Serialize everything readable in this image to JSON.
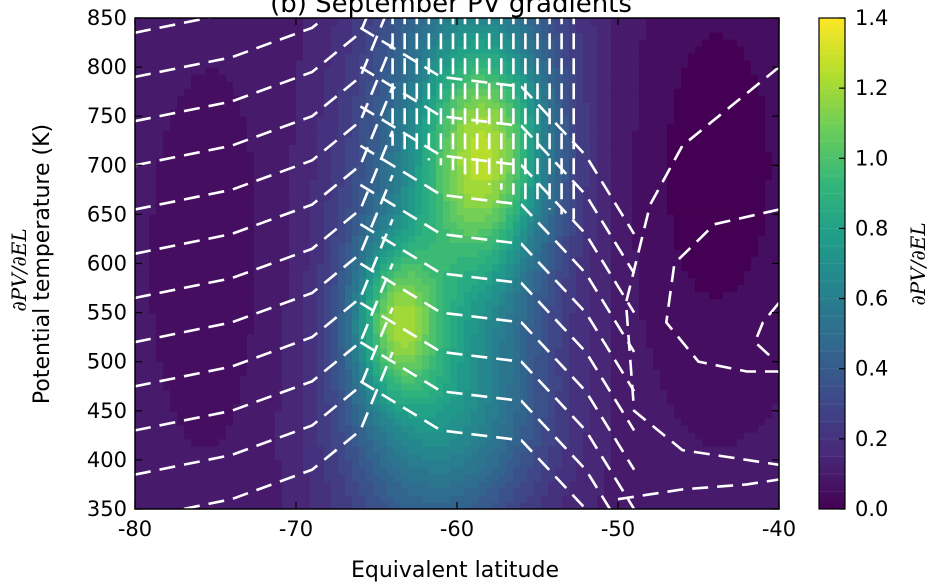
{
  "chart_data": {
    "type": "heatmap",
    "title": "(b) September PV gradients",
    "xlabel": "Equivalent latitude",
    "ylabel": "Potential temperature (K)",
    "ylabel_math": "∂PV/∂EL",
    "xlim": [
      -80,
      -40
    ],
    "ylim": [
      350,
      850
    ],
    "x_ticks": [
      "-80",
      "-70",
      "-60",
      "-50",
      "-40"
    ],
    "y_ticks": [
      "350",
      "400",
      "450",
      "500",
      "550",
      "600",
      "650",
      "700",
      "750",
      "800",
      "850"
    ],
    "colorbar": {
      "label": "∂PV/∂EL",
      "range": [
        0.0,
        1.4
      ],
      "ticks": [
        "0.0",
        "0.2",
        "0.4",
        "0.6",
        "0.8",
        "1.0",
        "1.2",
        "1.4"
      ],
      "colormap": "viridis"
    },
    "field_features": [
      {
        "description": "primary maximum",
        "x": -58,
        "y": 710,
        "value": 1.35
      },
      {
        "description": "secondary maximum",
        "x": -64,
        "y": 540,
        "value": 1.3
      },
      {
        "description": "jet ridge axis",
        "x": -60,
        "y": 600,
        "value": 0.9
      },
      {
        "description": "polar cap interior",
        "x": -74,
        "y": 600,
        "value": 0.1
      },
      {
        "description": "midlatitude surf zone",
        "x": -44,
        "y": 650,
        "value": 0.02
      }
    ],
    "overlay": "dashed white contours",
    "grid": false
  },
  "colors": {
    "viridis": [
      "#440154",
      "#482878",
      "#3e4989",
      "#31688e",
      "#26828e",
      "#1f9e89",
      "#35b779",
      "#6ece58",
      "#b5de2b",
      "#fde725"
    ],
    "contour": "#ffffff"
  }
}
